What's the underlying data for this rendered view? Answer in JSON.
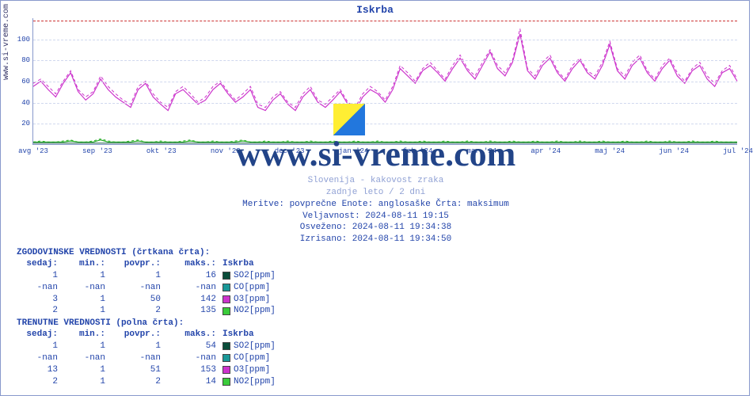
{
  "title": "Iskrba",
  "site_label": "www.si-vreme.com",
  "watermark": "www.si-vreme.com",
  "chart": {
    "type": "line",
    "xlim": [
      "avg '23",
      "jul '24"
    ],
    "ylim": [
      0,
      120
    ],
    "ytick_step": 20,
    "yticks": [
      20,
      40,
      60,
      80,
      100
    ],
    "xticks": [
      "avg '23",
      "sep '23",
      "okt '23",
      "nov '23",
      "dec '23",
      "jan '24",
      "feb '24",
      "mar '24",
      "apr '24",
      "maj '24",
      "jun '24",
      "jul '24"
    ],
    "grid_color": "#d0d8ee",
    "red_line_y": 118,
    "background_color": "#ffffff",
    "series": [
      {
        "name": "O3 historic",
        "color": "#cc33cc",
        "dash": "4,3",
        "width": 1,
        "values": [
          58,
          62,
          55,
          48,
          60,
          70,
          52,
          45,
          50,
          65,
          55,
          48,
          42,
          38,
          55,
          60,
          48,
          40,
          35,
          50,
          55,
          48,
          40,
          45,
          55,
          60,
          50,
          42,
          48,
          55,
          38,
          35,
          45,
          50,
          40,
          35,
          48,
          55,
          42,
          38,
          45,
          52,
          40,
          35,
          48,
          55,
          50,
          42,
          55,
          75,
          68,
          60,
          72,
          78,
          70,
          62,
          75,
          85,
          72,
          65,
          78,
          90,
          75,
          68,
          80,
          110,
          72,
          65,
          78,
          85,
          70,
          62,
          75,
          82,
          70,
          65,
          78,
          98,
          72,
          65,
          78,
          85,
          70,
          62,
          75,
          82,
          68,
          60,
          72,
          78,
          65,
          58,
          70,
          75,
          62
        ]
      },
      {
        "name": "O3 current",
        "color": "#cc33cc",
        "dash": "",
        "width": 1.2,
        "values": [
          55,
          60,
          52,
          45,
          58,
          68,
          50,
          42,
          48,
          62,
          52,
          45,
          40,
          35,
          52,
          58,
          45,
          38,
          32,
          48,
          52,
          45,
          38,
          42,
          52,
          58,
          48,
          40,
          45,
          52,
          35,
          32,
          42,
          48,
          38,
          32,
          45,
          52,
          40,
          35,
          42,
          50,
          38,
          32,
          45,
          52,
          48,
          40,
          52,
          72,
          65,
          58,
          70,
          75,
          68,
          60,
          72,
          82,
          70,
          62,
          75,
          88,
          72,
          65,
          78,
          105,
          70,
          62,
          75,
          82,
          68,
          60,
          72,
          80,
          68,
          62,
          75,
          95,
          70,
          62,
          75,
          82,
          68,
          60,
          72,
          80,
          65,
          58,
          70,
          75,
          62,
          55,
          68,
          72,
          60
        ]
      },
      {
        "name": "NO2 historic",
        "color": "#22aa22",
        "dash": "3,3",
        "width": 1,
        "values": [
          2,
          3,
          2,
          2,
          3,
          4,
          2,
          2,
          3,
          5,
          3,
          2,
          2,
          3,
          4,
          2,
          2,
          3,
          2,
          2,
          3,
          4,
          2,
          2,
          3,
          2,
          2,
          3,
          4,
          2,
          2,
          3,
          2,
          2,
          3,
          2,
          2,
          3,
          2,
          2,
          3,
          2,
          2,
          3,
          2,
          2,
          3,
          2,
          2,
          3,
          2,
          2,
          3,
          2,
          2,
          3,
          2,
          2,
          3,
          2,
          2,
          3,
          2,
          2,
          3,
          2,
          2,
          3,
          2,
          2,
          3,
          2,
          2,
          3,
          2,
          2,
          3,
          2,
          2,
          3,
          2,
          2,
          3,
          2,
          2,
          3,
          2,
          2,
          3,
          2,
          2,
          3,
          2,
          2,
          2
        ]
      },
      {
        "name": "NO2 current",
        "color": "#22aa22",
        "dash": "",
        "width": 1.2,
        "values": [
          2,
          2,
          2,
          2,
          2,
          3,
          2,
          2,
          2,
          4,
          2,
          2,
          2,
          2,
          3,
          2,
          2,
          2,
          2,
          2,
          2,
          3,
          2,
          2,
          2,
          2,
          2,
          2,
          3,
          2,
          2,
          2,
          2,
          2,
          2,
          2,
          2,
          2,
          2,
          2,
          2,
          2,
          2,
          2,
          2,
          2,
          2,
          2,
          2,
          2,
          2,
          2,
          2,
          2,
          2,
          2,
          2,
          2,
          2,
          2,
          2,
          2,
          2,
          2,
          2,
          2,
          2,
          2,
          2,
          2,
          2,
          2,
          2,
          2,
          2,
          2,
          2,
          2,
          2,
          2,
          2,
          2,
          2,
          2,
          2,
          2,
          2,
          2,
          2,
          2,
          2,
          2,
          2,
          2,
          2
        ]
      },
      {
        "name": "SO2",
        "color": "#115544",
        "dash": "",
        "width": 1,
        "values": [
          1,
          1,
          1,
          1,
          1,
          1,
          1,
          1,
          1,
          1,
          1,
          1,
          1,
          1,
          1,
          1,
          1,
          1,
          1,
          1,
          1,
          1,
          1,
          1,
          1,
          1,
          1,
          1,
          1,
          1,
          1,
          1,
          1,
          1,
          1,
          1,
          1,
          1,
          1,
          1,
          1,
          1,
          1,
          1,
          1,
          1,
          1,
          1,
          1,
          1,
          1,
          1,
          1,
          1,
          1,
          1,
          1,
          1,
          1,
          1,
          1,
          1,
          1,
          1,
          1,
          1,
          1,
          1,
          1,
          1,
          1,
          1,
          1,
          1,
          1,
          1,
          1,
          1,
          1,
          1,
          1,
          1,
          1,
          1,
          1,
          1,
          1,
          1,
          1,
          1,
          1,
          1,
          1,
          1,
          1
        ]
      }
    ]
  },
  "meta": {
    "line1": "Meritve: povprečne  Enote: anglosaške  Črta: maksimum",
    "line2": "Veljavnost: 2024-08-11 19:15",
    "line3": "Osveženo: 2024-08-11 19:34:38",
    "line4": "Izrisano: 2024-08-11 19:34:50",
    "sub1": "Slovenija - kakovost zraka",
    "sub2": "zadnje leto / 2 dni"
  },
  "tables": {
    "hist_title": "ZGODOVINSKE VREDNOSTI (črtkana črta):",
    "curr_title": "TRENUTNE VREDNOSTI (polna črta):",
    "station": "Iskrba",
    "columns": [
      "sedaj:",
      "min.:",
      "povpr.:",
      "maks.:"
    ],
    "hist_rows": [
      {
        "sedaj": "1",
        "min": "1",
        "povpr": "1",
        "maks": "16",
        "label": "SO2[ppm]",
        "color": "#0a4d3a"
      },
      {
        "sedaj": "-nan",
        "min": "-nan",
        "povpr": "-nan",
        "maks": "-nan",
        "label": "CO[ppm]",
        "color": "#1a9898"
      },
      {
        "sedaj": "3",
        "min": "1",
        "povpr": "50",
        "maks": "142",
        "label": "O3[ppm]",
        "color": "#cc33cc"
      },
      {
        "sedaj": "2",
        "min": "1",
        "povpr": "2",
        "maks": "135",
        "label": "NO2[ppm]",
        "color": "#3acc3a"
      }
    ],
    "curr_rows": [
      {
        "sedaj": "1",
        "min": "1",
        "povpr": "1",
        "maks": "54",
        "label": "SO2[ppm]",
        "color": "#0a4d3a"
      },
      {
        "sedaj": "-nan",
        "min": "-nan",
        "povpr": "-nan",
        "maks": "-nan",
        "label": "CO[ppm]",
        "color": "#1a9898"
      },
      {
        "sedaj": "13",
        "min": "1",
        "povpr": "51",
        "maks": "153",
        "label": "O3[ppm]",
        "color": "#cc33cc"
      },
      {
        "sedaj": "2",
        "min": "1",
        "povpr": "2",
        "maks": "14",
        "label": "NO2[ppm]",
        "color": "#3acc3a"
      }
    ]
  }
}
